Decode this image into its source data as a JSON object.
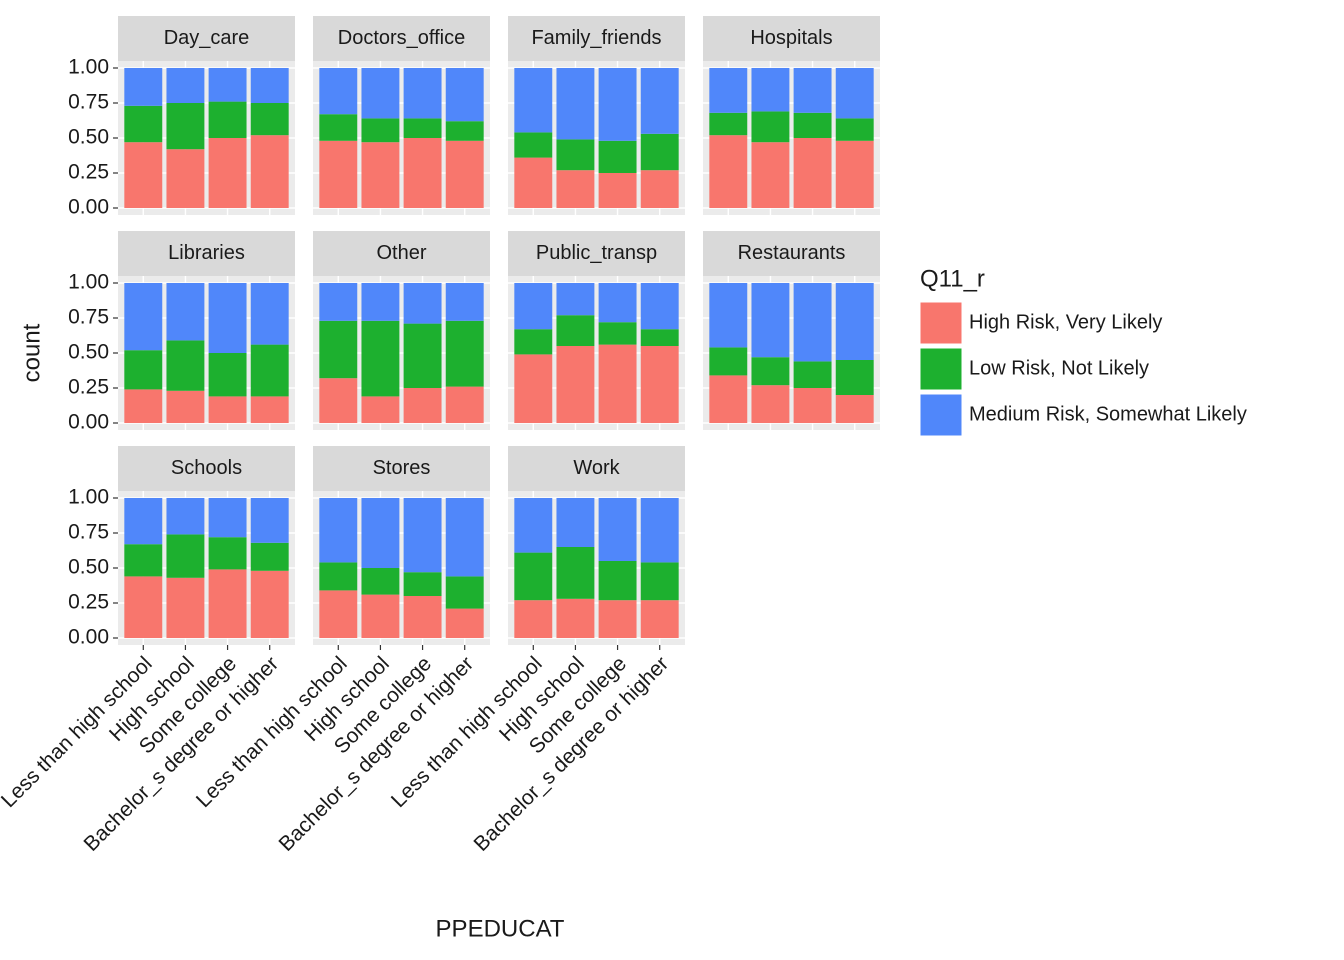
{
  "chart_data": {
    "type": "bar",
    "stacked": true,
    "x_label": "PPEDUCAT",
    "y_label": "count",
    "legend_title": "Q11_r",
    "categories": [
      "Less than high school",
      "High school",
      "Some college",
      "Bachelor_s degree or higher"
    ],
    "ylim": [
      -0.05,
      1.05
    ],
    "yticks": [
      {
        "value": 0,
        "label": "0.00"
      },
      {
        "value": 0.25,
        "label": "0.25"
      },
      {
        "value": 0.5,
        "label": "0.50"
      },
      {
        "value": 0.75,
        "label": "0.75"
      },
      {
        "value": 1,
        "label": "1.00"
      }
    ],
    "grid": true,
    "series": [
      {
        "name": "High Risk, Very Likely",
        "color": "#f8766d"
      },
      {
        "name": "Low Risk, Not Likely",
        "color": "#1db02f"
      },
      {
        "name": "Medium Risk, Somewhat Likely",
        "color": "#5087fa"
      }
    ],
    "facets": [
      {
        "title": "Day_care",
        "series": [
          {
            "values": [
              0.47,
              0.42,
              0.5,
              0.52
            ]
          },
          {
            "values": [
              0.26,
              0.33,
              0.26,
              0.23
            ]
          },
          {
            "values": [
              0.27,
              0.25,
              0.24,
              0.25
            ]
          }
        ]
      },
      {
        "title": "Doctors_office",
        "series": [
          {
            "values": [
              0.48,
              0.47,
              0.5,
              0.48
            ]
          },
          {
            "values": [
              0.19,
              0.17,
              0.14,
              0.14
            ]
          },
          {
            "values": [
              0.33,
              0.36,
              0.36,
              0.38
            ]
          }
        ]
      },
      {
        "title": "Family_friends",
        "series": [
          {
            "values": [
              0.36,
              0.27,
              0.25,
              0.27
            ]
          },
          {
            "values": [
              0.18,
              0.22,
              0.23,
              0.26
            ]
          },
          {
            "values": [
              0.46,
              0.51,
              0.52,
              0.47
            ]
          }
        ]
      },
      {
        "title": "Hospitals",
        "series": [
          {
            "values": [
              0.52,
              0.47,
              0.5,
              0.48
            ]
          },
          {
            "values": [
              0.16,
              0.22,
              0.18,
              0.16
            ]
          },
          {
            "values": [
              0.32,
              0.31,
              0.32,
              0.36
            ]
          }
        ]
      },
      {
        "title": "Libraries",
        "series": [
          {
            "values": [
              0.24,
              0.23,
              0.19,
              0.19
            ]
          },
          {
            "values": [
              0.28,
              0.36,
              0.31,
              0.37
            ]
          },
          {
            "values": [
              0.48,
              0.41,
              0.5,
              0.44
            ]
          }
        ]
      },
      {
        "title": "Other",
        "series": [
          {
            "values": [
              0.32,
              0.19,
              0.25,
              0.26
            ]
          },
          {
            "values": [
              0.41,
              0.54,
              0.46,
              0.47
            ]
          },
          {
            "values": [
              0.27,
              0.27,
              0.29,
              0.27
            ]
          }
        ]
      },
      {
        "title": "Public_transp",
        "series": [
          {
            "values": [
              0.49,
              0.55,
              0.56,
              0.55
            ]
          },
          {
            "values": [
              0.18,
              0.22,
              0.16,
              0.12
            ]
          },
          {
            "values": [
              0.33,
              0.23,
              0.28,
              0.33
            ]
          }
        ]
      },
      {
        "title": "Restaurants",
        "series": [
          {
            "values": [
              0.34,
              0.27,
              0.25,
              0.2
            ]
          },
          {
            "values": [
              0.2,
              0.2,
              0.19,
              0.25
            ]
          },
          {
            "values": [
              0.46,
              0.53,
              0.56,
              0.55
            ]
          }
        ]
      },
      {
        "title": "Schools",
        "series": [
          {
            "values": [
              0.44,
              0.43,
              0.49,
              0.48
            ]
          },
          {
            "values": [
              0.23,
              0.31,
              0.23,
              0.2
            ]
          },
          {
            "values": [
              0.33,
              0.26,
              0.28,
              0.32
            ]
          }
        ]
      },
      {
        "title": "Stores",
        "series": [
          {
            "values": [
              0.34,
              0.31,
              0.3,
              0.21
            ]
          },
          {
            "values": [
              0.2,
              0.19,
              0.17,
              0.23
            ]
          },
          {
            "values": [
              0.46,
              0.5,
              0.53,
              0.56
            ]
          }
        ]
      },
      {
        "title": "Work",
        "series": [
          {
            "values": [
              0.27,
              0.28,
              0.27,
              0.27
            ]
          },
          {
            "values": [
              0.34,
              0.37,
              0.28,
              0.27
            ]
          },
          {
            "values": [
              0.39,
              0.35,
              0.45,
              0.46
            ]
          }
        ]
      }
    ]
  }
}
